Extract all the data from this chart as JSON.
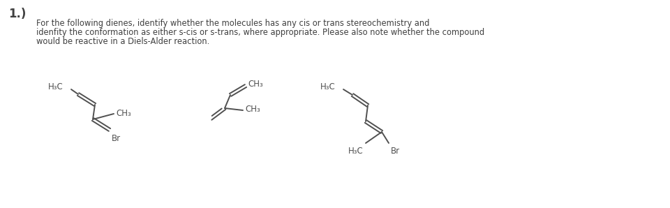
{
  "bg_color": "#ffffff",
  "line_color": "#505050",
  "text_color": "#404040",
  "title": "1.)",
  "body_line1": "For the following dienes, identify whether the molecules has any cis or trans stereochemistry and",
  "body_line2": "idenfity the conformation as either s-cis or s-trans, where appropriate. Please also note whether the compound",
  "body_line3": "would be reactive in a Diels-Alder reaction.",
  "title_fontsize": 12,
  "body_fontsize": 8.3,
  "chem_fontsize": 8.5,
  "lw": 1.4
}
